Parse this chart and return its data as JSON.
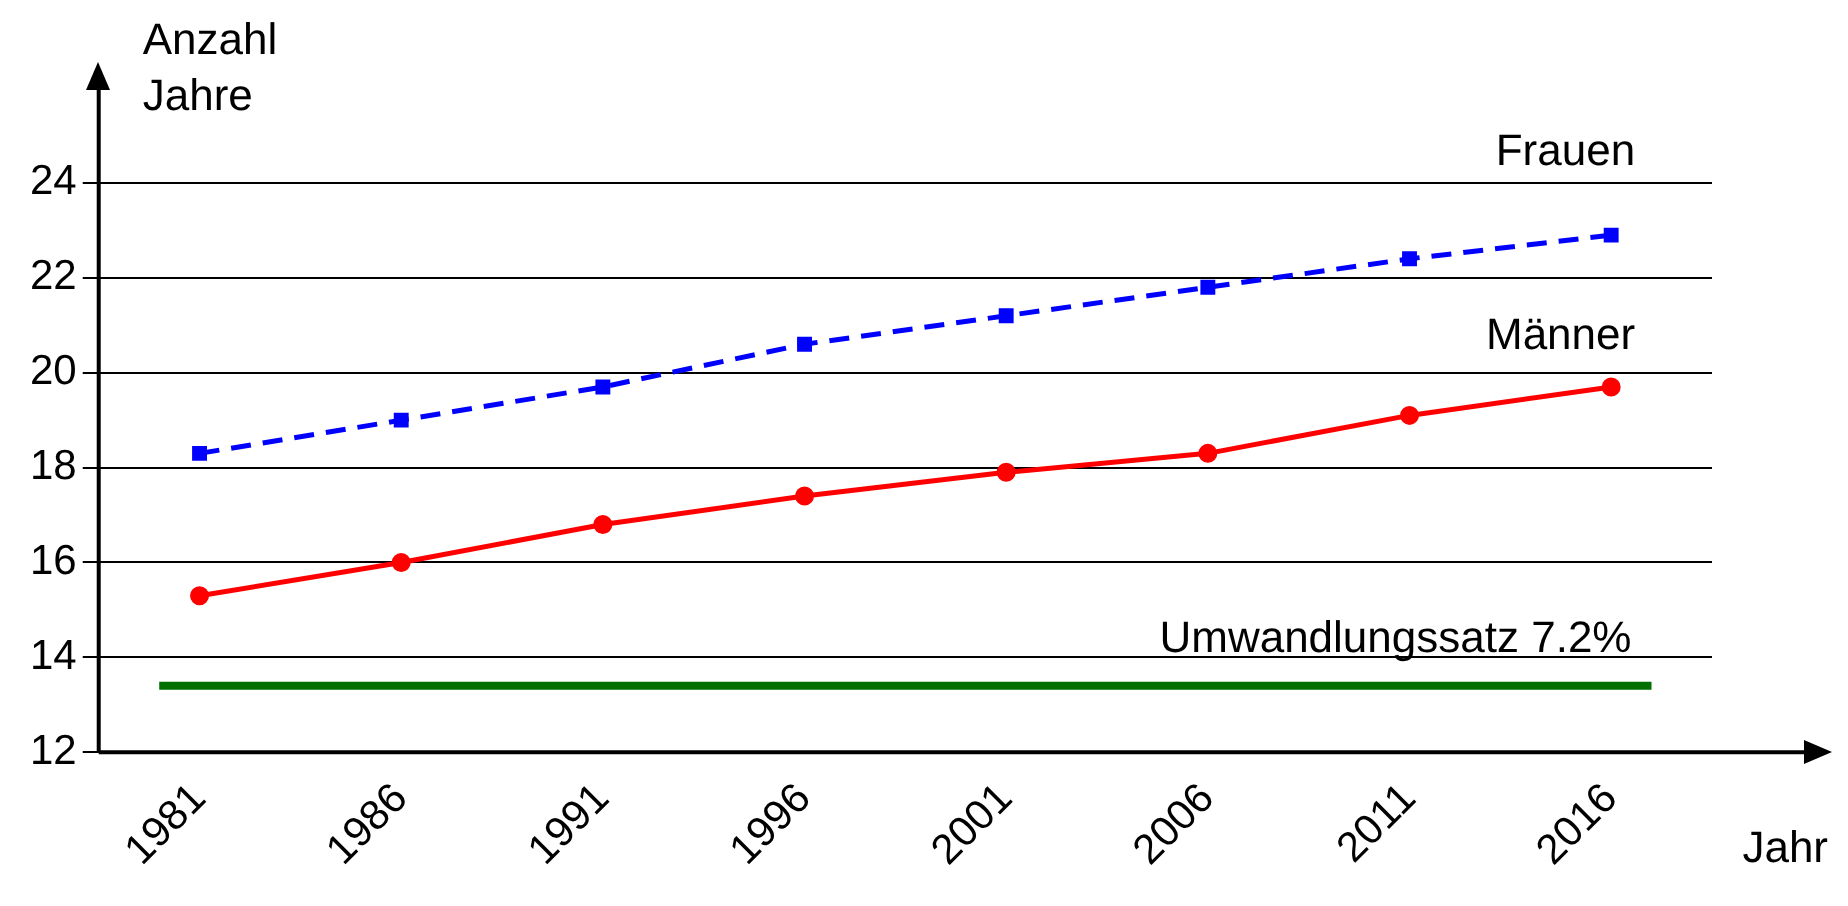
{
  "chart_data": {
    "type": "line",
    "ylabel": "Anzahl Jahre",
    "xlabel": "Jahr",
    "categories": [
      "1981",
      "1986",
      "1991",
      "1996",
      "2001",
      "2006",
      "2011",
      "2016"
    ],
    "series": [
      {
        "name": "Frauen",
        "color": "#0000ff",
        "marker": "square",
        "line_style": "dashed",
        "values": [
          18.3,
          19.0,
          19.7,
          20.6,
          21.2,
          21.8,
          22.4,
          22.9
        ]
      },
      {
        "name": "Männer",
        "color": "#ff0000",
        "marker": "circle",
        "line_style": "solid",
        "values": [
          15.3,
          16.0,
          16.8,
          17.4,
          17.9,
          18.3,
          19.1,
          19.7
        ]
      }
    ],
    "ylim": [
      12,
      26
    ],
    "yticks": [
      12,
      14,
      16,
      18,
      20,
      22,
      24
    ],
    "grid": "y",
    "legend": false,
    "ref_lines": [
      {
        "axis": "y",
        "value": 13.4,
        "label": "Umwandlungssatz 7.2%",
        "color": "#007000"
      }
    ]
  }
}
